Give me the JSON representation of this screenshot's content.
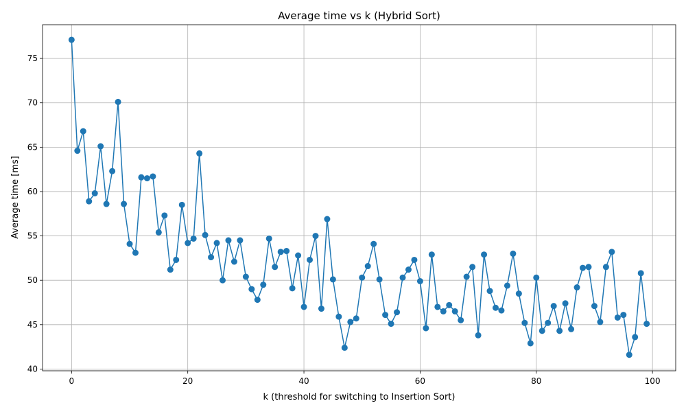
{
  "chart_data": {
    "type": "line",
    "title": "Average time vs k (Hybrid Sort)",
    "xlabel": "k (threshold for switching to Insertion Sort)",
    "ylabel": "Average time [ms]",
    "xlim": [
      -5,
      104
    ],
    "ylim": [
      39.8,
      78.8
    ],
    "xticks": [
      0,
      20,
      40,
      60,
      80,
      100
    ],
    "yticks": [
      40,
      45,
      50,
      55,
      60,
      65,
      70,
      75
    ],
    "grid": true,
    "color": "#1f77b4",
    "x": [
      0,
      1,
      2,
      3,
      4,
      5,
      6,
      7,
      8,
      9,
      10,
      11,
      12,
      13,
      14,
      15,
      16,
      17,
      18,
      19,
      20,
      21,
      22,
      23,
      24,
      25,
      26,
      27,
      28,
      29,
      30,
      31,
      32,
      33,
      34,
      35,
      36,
      37,
      38,
      39,
      40,
      41,
      42,
      43,
      44,
      45,
      46,
      47,
      48,
      49,
      50,
      51,
      52,
      53,
      54,
      55,
      56,
      57,
      58,
      59,
      60,
      61,
      62,
      63,
      64,
      65,
      66,
      67,
      68,
      69,
      70,
      71,
      72,
      73,
      74,
      75,
      76,
      77,
      78,
      79,
      80,
      81,
      82,
      83,
      84,
      85,
      86,
      87,
      88,
      89,
      90,
      91,
      92,
      93,
      94,
      95,
      96,
      97,
      98,
      99
    ],
    "y": [
      77.1,
      64.6,
      66.8,
      58.9,
      59.8,
      65.1,
      58.6,
      62.3,
      70.1,
      58.6,
      54.1,
      53.1,
      61.6,
      61.5,
      61.7,
      55.4,
      57.3,
      51.2,
      52.3,
      58.5,
      54.2,
      54.7,
      64.3,
      55.1,
      52.6,
      54.2,
      50.0,
      54.5,
      52.1,
      54.5,
      50.4,
      49.0,
      47.8,
      49.5,
      54.7,
      51.5,
      53.2,
      53.3,
      49.1,
      52.8,
      47.0,
      52.3,
      55.0,
      46.8,
      56.9,
      50.1,
      45.9,
      42.4,
      45.3,
      45.7,
      50.3,
      51.6,
      54.1,
      50.1,
      46.1,
      45.1,
      46.4,
      50.3,
      51.2,
      52.3,
      49.9,
      44.6,
      52.9,
      47.0,
      46.5,
      47.2,
      46.5,
      45.5,
      50.4,
      51.5,
      43.8,
      52.9,
      48.8,
      46.9,
      46.6,
      49.4,
      53.0,
      48.5,
      45.2,
      42.9,
      50.3,
      44.3,
      45.2,
      47.1,
      44.3,
      47.4,
      44.5,
      49.2,
      51.4,
      51.5,
      47.1,
      45.3,
      51.5,
      53.2,
      45.8,
      46.1,
      41.6,
      43.6,
      50.8,
      45.1
    ]
  }
}
